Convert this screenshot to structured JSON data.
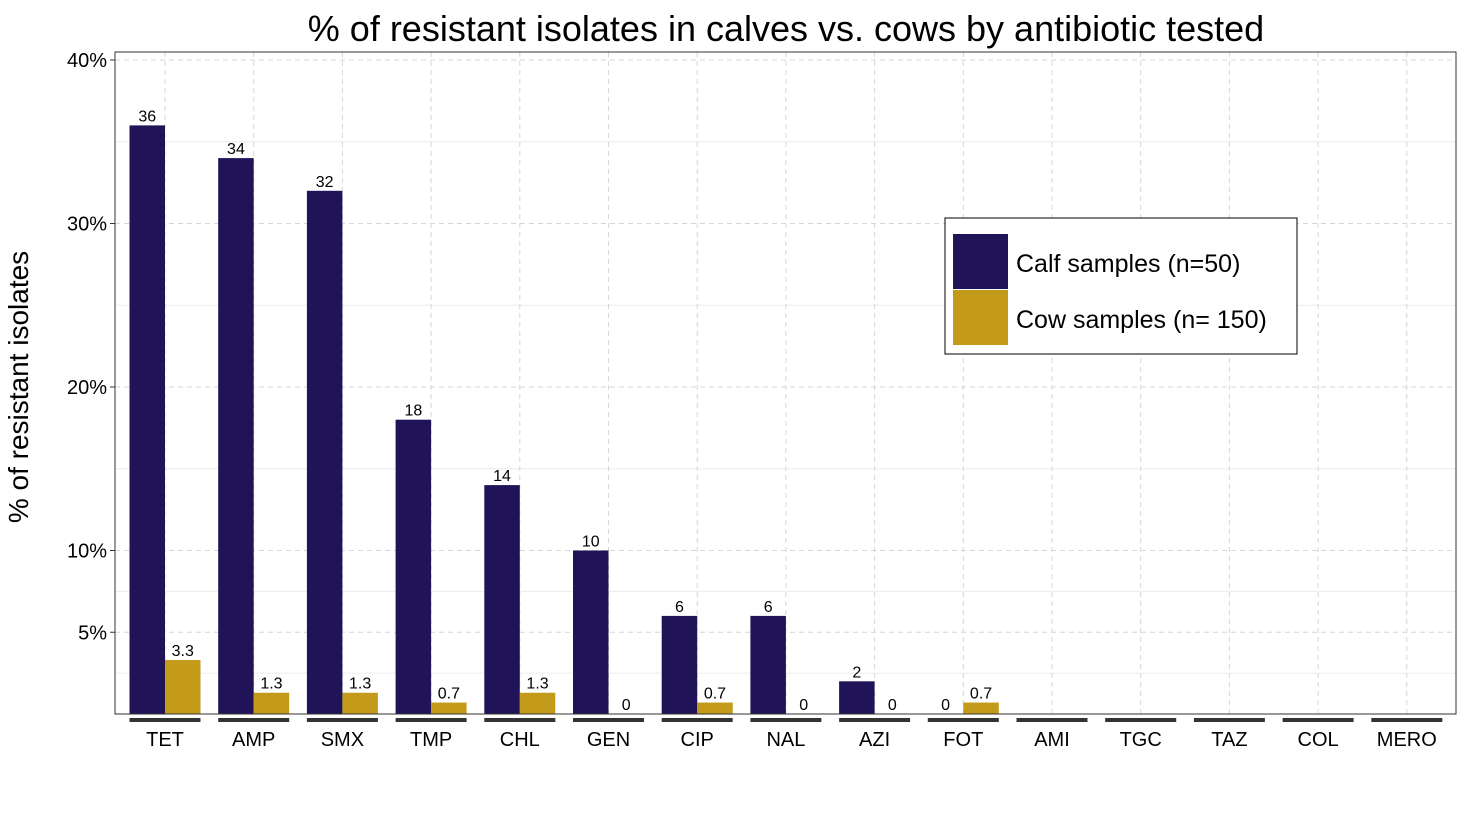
{
  "chart_data": {
    "type": "bar",
    "title": "% of resistant isolates in calves vs. cows by antibiotic tested",
    "xlabel": "",
    "ylabel": "% of resistant isolates",
    "categories": [
      "TET",
      "AMP",
      "SMX",
      "TMP",
      "CHL",
      "GEN",
      "CIP",
      "NAL",
      "AZI",
      "FOT",
      "AMI",
      "TGC",
      "TAZ",
      "COL",
      "MERO"
    ],
    "series": [
      {
        "name": "Calf samples (n=50)",
        "color": "#211357",
        "values": [
          36,
          34,
          32,
          18,
          14,
          10,
          6,
          6,
          2,
          0,
          null,
          null,
          null,
          null,
          null
        ],
        "labels": [
          "36",
          "34",
          "32",
          "18",
          "14",
          "10",
          "6",
          "6",
          "2",
          "0",
          "",
          "",
          "",
          "",
          ""
        ]
      },
      {
        "name": "Cow samples (n= 150)",
        "color": "#C49A1B",
        "values": [
          3.3,
          1.3,
          1.3,
          0.7,
          1.3,
          0,
          0.7,
          0,
          0,
          0.7,
          null,
          null,
          null,
          null,
          null
        ],
        "labels": [
          "3.3",
          "1.3",
          "1.3",
          "0.7",
          "1.3",
          "0",
          "0.7",
          "0",
          "0",
          "0.7",
          "",
          "",
          "",
          "",
          ""
        ]
      }
    ],
    "yticks": [
      {
        "value": 5,
        "label": "5%"
      },
      {
        "value": 10,
        "label": "10%"
      },
      {
        "value": 20,
        "label": "20%"
      },
      {
        "value": 30,
        "label": "30%"
      },
      {
        "value": 40,
        "label": "40%"
      }
    ],
    "ylim": [
      0,
      40.5
    ],
    "grid": true,
    "legend_position": "top-right"
  }
}
